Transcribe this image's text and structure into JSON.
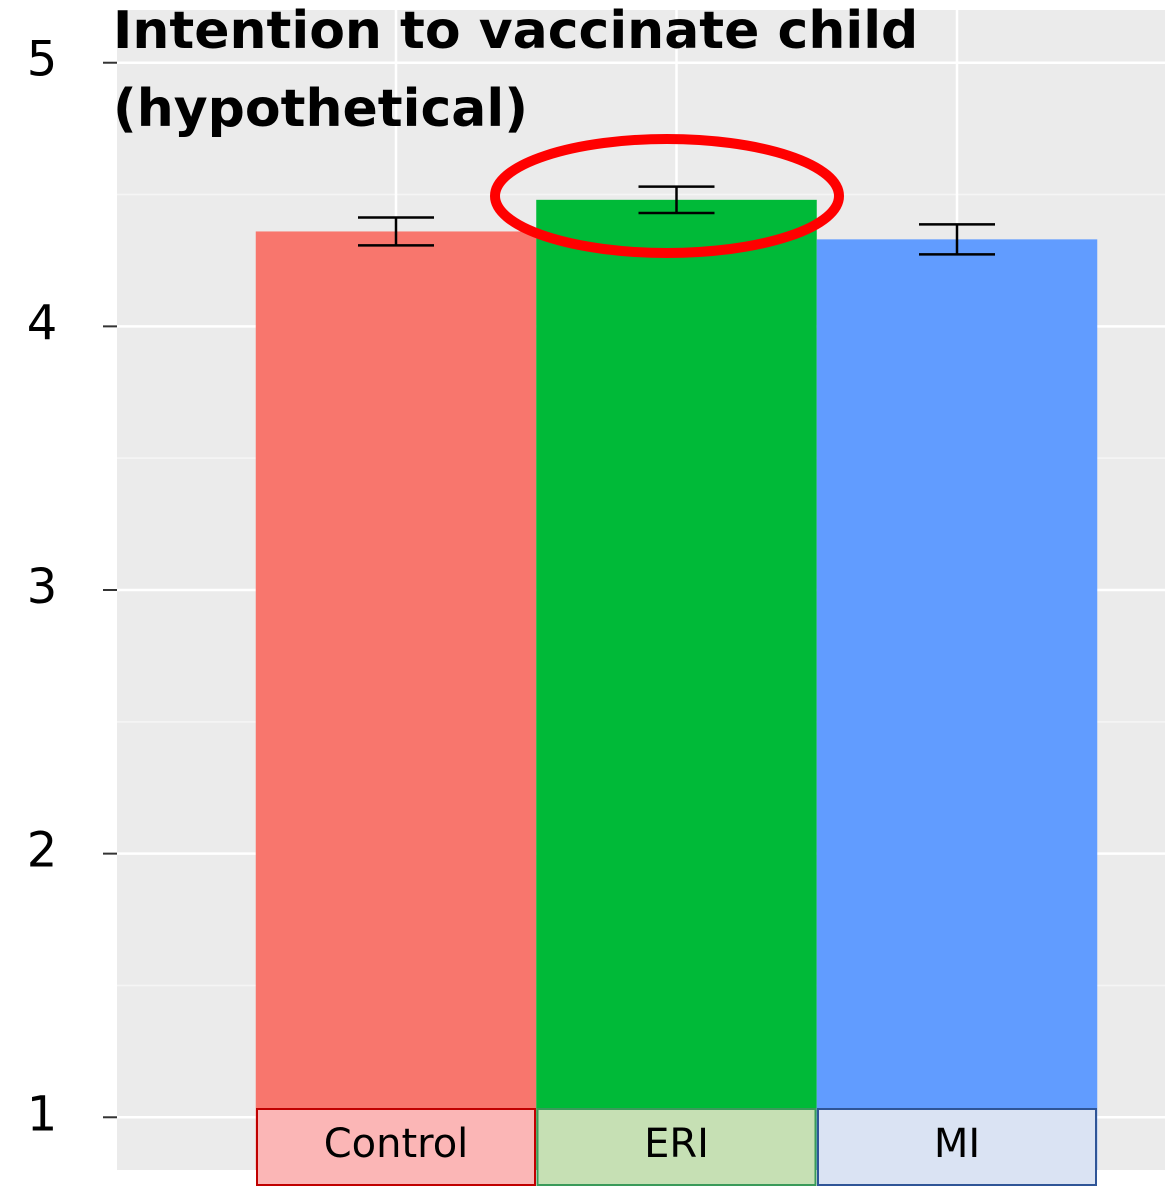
{
  "chart_data": {
    "type": "bar",
    "title": [
      "Intention to vaccinate child",
      "(hypothetical)"
    ],
    "categories": [
      "Control",
      "ERI",
      "MI"
    ],
    "values": [
      4.36,
      4.48,
      4.33
    ],
    "errors": [
      0.053,
      0.05,
      0.057
    ],
    "colors": [
      "#f8766d",
      "#00ba38",
      "#619cff"
    ],
    "ylim": [
      0.8,
      5.2
    ],
    "yticks": [
      1,
      2,
      3,
      4,
      5
    ],
    "yticks_minor": [
      1.5,
      2.5,
      3.5,
      4.5
    ],
    "grid": true
  }
}
